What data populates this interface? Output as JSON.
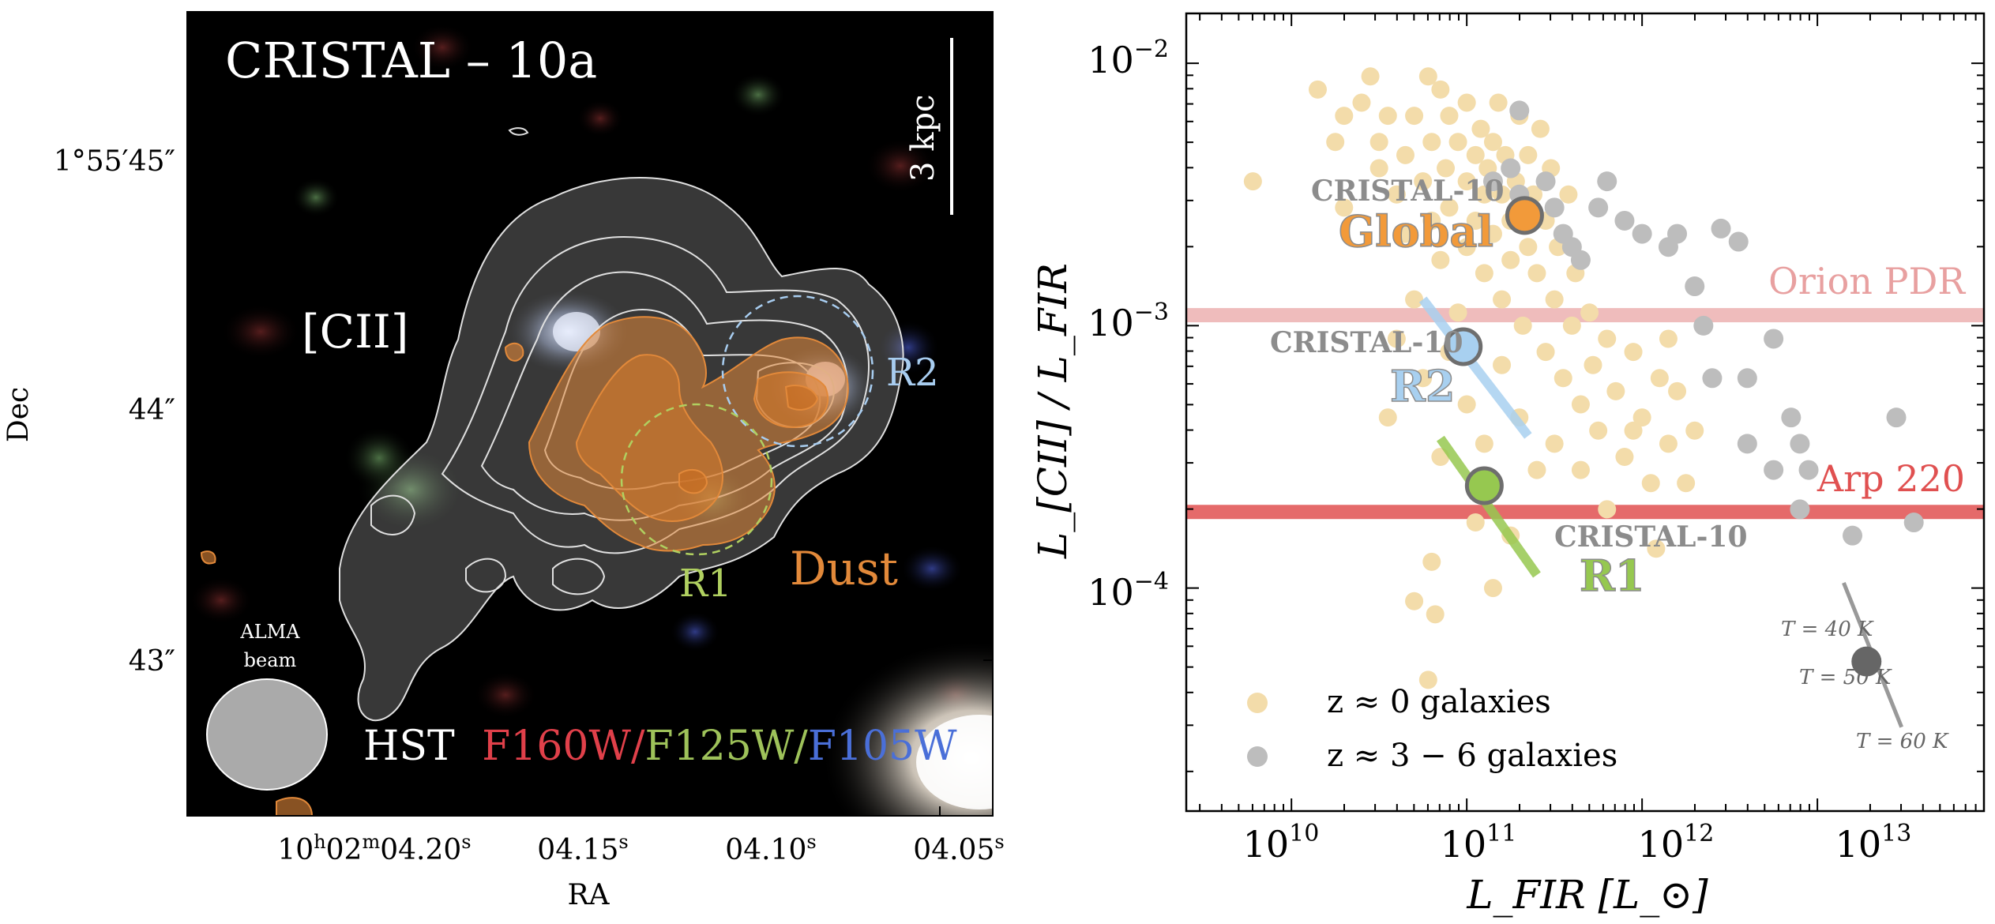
{
  "chart_data": [
    {
      "type": "image",
      "title": "CRISTAL – 10a",
      "xlabel": "RA",
      "ylabel": "Dec",
      "x_ticks": [
        {
          "label_main": "10",
          "sup1": "h",
          "mid": "02",
          "sup2": "m",
          "tail": "04.20",
          "sup3": "s"
        },
        {
          "label_main": "04.15",
          "sup3": "s"
        },
        {
          "label_main": "04.10",
          "sup3": "s"
        },
        {
          "label_main": "04.05",
          "sup3": "s"
        }
      ],
      "y_ticks": [
        "1°55′45″",
        "44″",
        "43″"
      ],
      "scalebar_label": "3 kpc",
      "line_label": "[CII]",
      "dust_label": "Dust",
      "region_labels": [
        "R1",
        "R2"
      ],
      "beam_label": [
        "ALMA",
        "beam"
      ],
      "hst_prefix": "HST",
      "filters": [
        {
          "name": "F160W",
          "color": "#e0404a"
        },
        {
          "name": "F125W",
          "color": "#9ec25a"
        },
        {
          "name": "F105W",
          "color": "#4a6fd8"
        }
      ],
      "separator": "/"
    },
    {
      "type": "scatter",
      "xlabel": "L_FIR [L_⊙]",
      "ylabel": "L_[CII] / L_FIR",
      "xscale": "log",
      "yscale": "log",
      "xlim_log10": [
        9.4,
        13.95
      ],
      "ylim_log10": [
        -4.85,
        -1.81
      ],
      "x_tick_exponents": [
        10,
        11,
        12,
        13
      ],
      "y_tick_exponents": [
        -2,
        -3,
        -4
      ],
      "series": [
        {
          "name": "z ≈ 0 galaxies",
          "color": "#f3dcaa",
          "points": [
            [
              9.78,
              -2.45
            ],
            [
              10.15,
              -2.1
            ],
            [
              10.25,
              -2.3
            ],
            [
              10.3,
              -2.2
            ],
            [
              10.3,
              -2.55
            ],
            [
              10.4,
              -2.15
            ],
            [
              10.45,
              -2.05
            ],
            [
              10.5,
              -2.4
            ],
            [
              10.55,
              -2.2
            ],
            [
              10.5,
              -2.3
            ],
            [
              10.6,
              -2.5
            ],
            [
              10.65,
              -2.35
            ],
            [
              10.65,
              -2.65
            ],
            [
              10.7,
              -2.2
            ],
            [
              10.7,
              -2.9
            ],
            [
              10.75,
              -2.45
            ],
            [
              10.78,
              -2.05
            ],
            [
              10.8,
              -2.3
            ],
            [
              10.8,
              -2.6
            ],
            [
              10.85,
              -2.1
            ],
            [
              10.85,
              -2.75
            ],
            [
              10.88,
              -2.4
            ],
            [
              10.9,
              -2.2
            ],
            [
              10.9,
              -2.55
            ],
            [
              10.95,
              -2.3
            ],
            [
              10.95,
              -2.95
            ],
            [
              11.0,
              -2.15
            ],
            [
              11.0,
              -2.45
            ],
            [
              11.0,
              -2.7
            ],
            [
              11.05,
              -2.35
            ],
            [
              11.05,
              -2.6
            ],
            [
              11.08,
              -2.25
            ],
            [
              11.1,
              -2.5
            ],
            [
              11.1,
              -2.8
            ],
            [
              11.12,
              -2.4
            ],
            [
              11.15,
              -2.3
            ],
            [
              11.15,
              -2.65
            ],
            [
              11.18,
              -2.15
            ],
            [
              11.2,
              -2.5
            ],
            [
              11.2,
              -2.9
            ],
            [
              11.22,
              -2.35
            ],
            [
              11.25,
              -2.6
            ],
            [
              11.25,
              -2.75
            ],
            [
              11.28,
              -2.45
            ],
            [
              11.3,
              -2.2
            ],
            [
              11.3,
              -2.55
            ],
            [
              11.32,
              -3.0
            ],
            [
              11.35,
              -2.35
            ],
            [
              11.35,
              -2.7
            ],
            [
              11.38,
              -2.5
            ],
            [
              11.4,
              -2.8
            ],
            [
              11.42,
              -2.25
            ],
            [
              11.45,
              -2.6
            ],
            [
              11.45,
              -3.1
            ],
            [
              11.48,
              -2.4
            ],
            [
              11.5,
              -2.9
            ],
            [
              11.52,
              -2.7
            ],
            [
              11.55,
              -3.2
            ],
            [
              11.58,
              -2.5
            ],
            [
              11.6,
              -3.0
            ],
            [
              11.62,
              -2.8
            ],
            [
              11.65,
              -3.3
            ],
            [
              11.7,
              -2.95
            ],
            [
              11.72,
              -3.15
            ],
            [
              11.75,
              -3.4
            ],
            [
              11.8,
              -3.05
            ],
            [
              11.85,
              -3.25
            ],
            [
              11.9,
              -3.5
            ],
            [
              11.95,
              -3.1
            ],
            [
              12.0,
              -3.35
            ],
            [
              12.05,
              -3.6
            ],
            [
              12.1,
              -3.2
            ],
            [
              12.15,
              -3.45
            ],
            [
              12.2,
              -3.25
            ],
            [
              12.3,
              -3.4
            ],
            [
              10.6,
              -3.05
            ],
            [
              10.75,
              -3.2
            ],
            [
              10.9,
              -3.1
            ],
            [
              11.0,
              -3.3
            ],
            [
              11.1,
              -3.45
            ],
            [
              11.2,
              -3.15
            ],
            [
              10.55,
              -3.35
            ],
            [
              10.85,
              -3.5
            ],
            [
              11.3,
              -3.35
            ],
            [
              11.4,
              -3.55
            ],
            [
              11.5,
              -3.45
            ],
            [
              10.7,
              -4.05
            ],
            [
              10.8,
              -3.9
            ],
            [
              11.05,
              -3.75
            ],
            [
              11.15,
              -4.0
            ],
            [
              11.25,
              -3.8
            ],
            [
              10.82,
              -4.1
            ],
            [
              10.78,
              -4.35
            ],
            [
              11.65,
              -3.55
            ],
            [
              11.8,
              -3.7
            ],
            [
              12.08,
              -3.85
            ],
            [
              12.25,
              -3.6
            ],
            [
              11.95,
              -3.4
            ],
            [
              12.15,
              -3.05
            ]
          ],
          "marker": "circle"
        },
        {
          "name": "z ≈ 3 − 6 galaxies",
          "color": "#bdbdbd",
          "points": [
            [
              11.3,
              -2.18
            ],
            [
              11.25,
              -2.4
            ],
            [
              11.3,
              -2.5
            ],
            [
              11.35,
              -2.6
            ],
            [
              11.45,
              -2.45
            ],
            [
              11.5,
              -2.55
            ],
            [
              11.55,
              -2.65
            ],
            [
              11.65,
              -2.75
            ],
            [
              11.75,
              -2.55
            ],
            [
              11.8,
              -2.45
            ],
            [
              11.9,
              -2.6
            ],
            [
              12.0,
              -2.65
            ],
            [
              12.15,
              -2.7
            ],
            [
              12.2,
              -2.65
            ],
            [
              12.3,
              -2.85
            ],
            [
              12.45,
              -2.63
            ],
            [
              12.55,
              -2.68
            ],
            [
              12.35,
              -3.0
            ],
            [
              12.4,
              -3.2
            ],
            [
              12.6,
              -3.2
            ],
            [
              12.75,
              -3.05
            ],
            [
              12.6,
              -3.45
            ],
            [
              12.75,
              -3.55
            ],
            [
              12.85,
              -3.35
            ],
            [
              12.9,
              -3.45
            ],
            [
              12.95,
              -3.55
            ],
            [
              12.9,
              -3.7
            ],
            [
              13.2,
              -3.8
            ],
            [
              13.45,
              -3.35
            ],
            [
              13.55,
              -3.75
            ],
            [
              11.15,
              -2.45
            ],
            [
              11.6,
              -2.7
            ]
          ],
          "marker": "circle"
        }
      ],
      "cristal10": {
        "name": "CRISTAL-10",
        "points": [
          {
            "label": "Global",
            "log_lfir": 11.33,
            "log_ratio": -2.58,
            "color": "#f29a3a",
            "error_line": null
          },
          {
            "label": "R2",
            "log_lfir": 10.98,
            "log_ratio": -3.08,
            "color": "#a8d0f0",
            "error_line": [
              [
                10.75,
                -2.9
              ],
              [
                11.35,
                -3.42
              ]
            ]
          },
          {
            "label": "R1",
            "log_lfir": 11.1,
            "log_ratio": -3.61,
            "color": "#96c850",
            "error_line": [
              [
                10.85,
                -3.43
              ],
              [
                11.4,
                -3.95
              ]
            ]
          }
        ]
      },
      "reference_lines": [
        {
          "label": "Orion PDR",
          "log_ratio": -2.96,
          "color": "#e8a0a0"
        },
        {
          "label": "Arp 220",
          "log_ratio": -3.71,
          "color": "#e05050"
        }
      ],
      "temperature_track": {
        "point_log": [
          13.28,
          -4.28
        ],
        "labels": [
          "T = 40 K",
          "T = 50 K",
          "T = 60 K"
        ],
        "line_log": [
          [
            13.15,
            -3.98
          ],
          [
            13.48,
            -4.53
          ]
        ],
        "color": "#666666"
      },
      "legend_position": "lower-left"
    }
  ]
}
